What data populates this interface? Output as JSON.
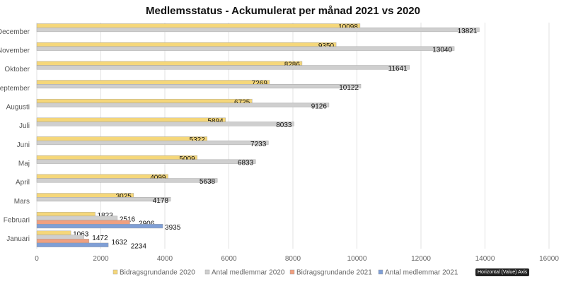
{
  "chart_data": {
    "type": "bar",
    "orientation": "horizontal",
    "title": "Medlemsstatus - Ackumulerat per månad 2021 vs 2020",
    "categories": [
      "Januari",
      "Februari",
      "Mars",
      "April",
      "Maj",
      "Juni",
      "Juli",
      "Augusti",
      "September",
      "Oktober",
      "November",
      "December"
    ],
    "series": [
      {
        "name": "Bidragsgrundande 2020",
        "color": "#f5d77a",
        "values": [
          1063,
          1823,
          3025,
          4099,
          5009,
          5322,
          5894,
          6725,
          7269,
          8286,
          9350,
          10098
        ]
      },
      {
        "name": "Antal medlemmar 2020",
        "color": "#cfcfcf",
        "values": [
          1472,
          2516,
          4178,
          5638,
          6833,
          7233,
          8033,
          9126,
          10122,
          11641,
          13040,
          13821
        ]
      },
      {
        "name": "Bidragsgrundande 2021",
        "color": "#f0a080",
        "values": [
          1632,
          2906,
          null,
          null,
          null,
          null,
          null,
          null,
          null,
          null,
          null,
          null
        ]
      },
      {
        "name": "Antal medlemmar 2021",
        "color": "#7f9fd6",
        "values": [
          2234,
          3935,
          null,
          null,
          null,
          null,
          null,
          null,
          null,
          null,
          null,
          null
        ]
      }
    ],
    "xlim": [
      0,
      16000
    ],
    "xticks": [
      0,
      2000,
      4000,
      6000,
      8000,
      10000,
      12000,
      14000,
      16000
    ],
    "grid": true,
    "legend": "bottom",
    "xlabel": "",
    "ylabel": ""
  },
  "tooltip": "Horizontal (Value) Axis"
}
